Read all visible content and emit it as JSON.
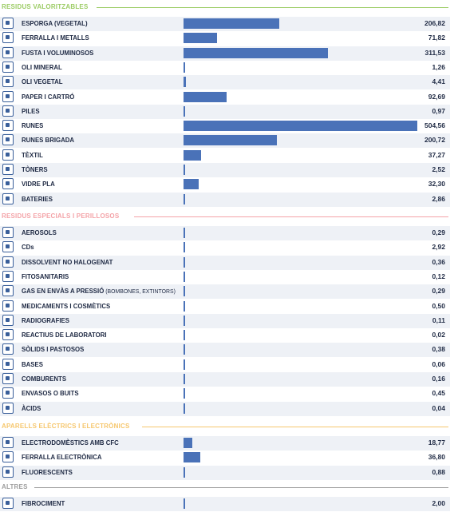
{
  "chart_data": {
    "type": "bar",
    "sections": [
      {
        "title": "RESIDUS VALORITZABLES",
        "color": "#9ccc65",
        "items": [
          {
            "label": "ESPORGA (VEGETAL)",
            "value": "206,82",
            "icon": "pruning-icon"
          },
          {
            "label": "FERRALLA I METALLS",
            "value": "71,82",
            "icon": "scrap-metal-icon"
          },
          {
            "label": "FUSTA I VOLUMINOSOS",
            "value": "311,53",
            "icon": "wood-icon"
          },
          {
            "label": "OLI MINERAL",
            "value": "1,26",
            "icon": "mineral-oil-icon"
          },
          {
            "label": "OLI VEGETAL",
            "value": "4,41",
            "icon": "vegetable-oil-icon"
          },
          {
            "label": "PAPER I CARTRÓ",
            "value": "92,69",
            "icon": "paper-icon"
          },
          {
            "label": "PILES",
            "value": "0,97",
            "icon": "battery-cell-icon"
          },
          {
            "label": "RUNES",
            "value": "504,56",
            "icon": "rubble-icon"
          },
          {
            "label": "RUNES BRIGADA",
            "value": "200,72",
            "icon": "rubble-brigade-icon"
          },
          {
            "label": "TÈXTIL",
            "value": "37,27",
            "icon": "textile-icon"
          },
          {
            "label": "TÒNERS",
            "value": "2,52",
            "icon": "toner-icon"
          },
          {
            "label": "VIDRE PLA",
            "value": "32,30",
            "icon": "flat-glass-icon"
          },
          {
            "label": "BATERIES",
            "value": "2,86",
            "icon": "car-battery-icon"
          }
        ]
      },
      {
        "title": "RESIDUS ESPECIALS I PERILLOSOS",
        "color": "#f4a3a8",
        "items": [
          {
            "label": "AEROSOLS",
            "value": "0,29",
            "icon": "aerosol-icon"
          },
          {
            "label": "CDs",
            "value": "2,92",
            "icon": "cd-icon"
          },
          {
            "label": "DISSOLVENT NO HALOGENAT",
            "value": "0,36",
            "icon": "solvent-icon"
          },
          {
            "label": "FITOSANITARIS",
            "value": "0,12",
            "icon": "pesticide-icon"
          },
          {
            "label": "GAS EN ENVÀS A PRESSIÓ",
            "note": "(BOMBONES, EXTINTORS)",
            "value": "0,29",
            "icon": "gas-cylinder-icon"
          },
          {
            "label": "MEDICAMENTS I COSMÈTICS",
            "value": "0,50",
            "icon": "medicine-icon"
          },
          {
            "label": "RADIOGRAFIES",
            "value": "0,11",
            "icon": "x-ray-icon"
          },
          {
            "label": "REACTIUS DE LABORATORI",
            "value": "0,02",
            "icon": "lab-reagent-icon"
          },
          {
            "label": "SÒLIDS I PASTOSOS",
            "value": "0,38",
            "icon": "solids-icon"
          },
          {
            "label": "BASES",
            "value": "0,06",
            "icon": "bases-icon"
          },
          {
            "label": "COMBURENTS",
            "value": "0,16",
            "icon": "oxidizer-icon"
          },
          {
            "label": "ENVASOS O BUITS",
            "value": "0,45",
            "icon": "empty-container-icon"
          },
          {
            "label": "ÀCIDS",
            "value": "0,04",
            "icon": "acid-icon"
          }
        ]
      },
      {
        "title": "APARELLS ELÈCTRICS I ELECTRÒNICS",
        "color": "#f6c76e",
        "items": [
          {
            "label": "ELECTRODOMÈSTICS AMB CFC",
            "value": "18,77",
            "icon": "fridge-icon"
          },
          {
            "label": "FERRALLA ELECTRÒNICA",
            "value": "36,80",
            "icon": "electronic-scrap-icon"
          },
          {
            "label": "FLUORESCENTS",
            "value": "0,88",
            "icon": "fluorescent-icon"
          }
        ]
      },
      {
        "title": "ALTRES",
        "color": "#9e9e9e",
        "items": [
          {
            "label": "FIBROCIMENT",
            "value": "2,00",
            "icon": "fibrocement-icon"
          }
        ]
      }
    ],
    "colors": {
      "bar": "#4a72b8",
      "row_shade": "#eef1f6",
      "text": "#1f2a44",
      "icon": "#3a5f9a"
    }
  }
}
